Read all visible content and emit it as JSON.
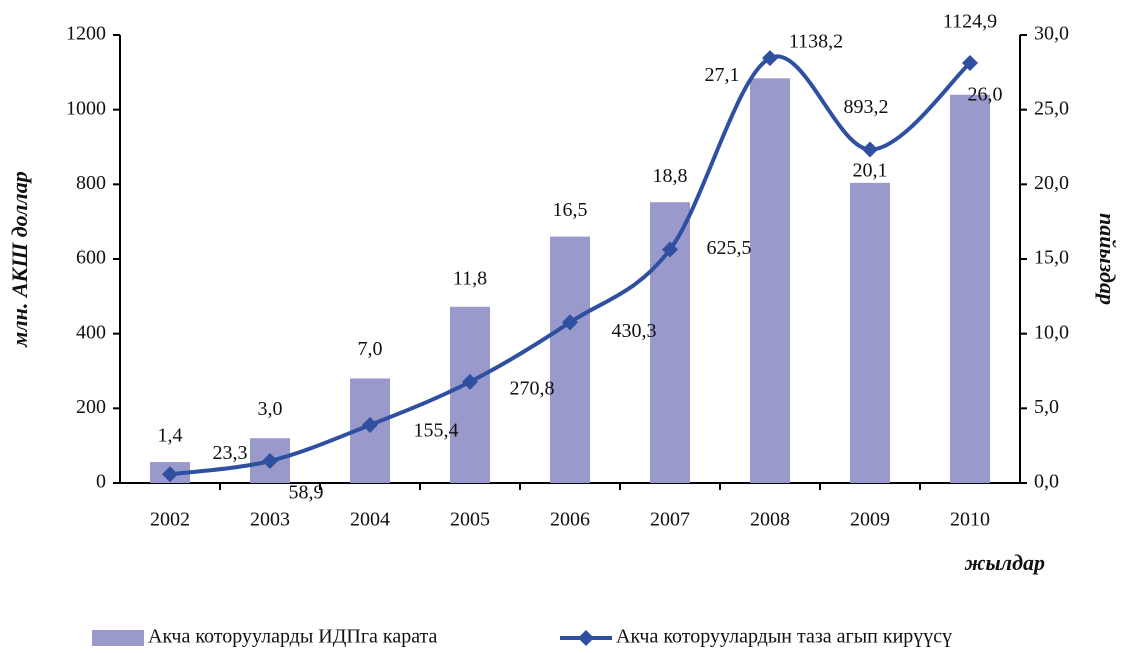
{
  "chart_data": {
    "type": "bar_line",
    "categories": [
      "2002",
      "2003",
      "2004",
      "2005",
      "2006",
      "2007",
      "2008",
      "2009",
      "2010"
    ],
    "series": [
      {
        "name": "Акча которууларды ИДПга карата",
        "type": "bar",
        "axis": "y2",
        "color": "#9999cc",
        "values": [
          1.4,
          3.0,
          7.0,
          11.8,
          16.5,
          18.8,
          27.1,
          20.1,
          26.0
        ],
        "value_labels": [
          "1,4",
          "3,0",
          "7,0",
          "11,8",
          "16,5",
          "18,8",
          "27,1",
          "20,1",
          "26,0"
        ]
      },
      {
        "name": "Акча которуулардын таза агып кирүүсү",
        "type": "line",
        "axis": "y",
        "color": "#2f4fa0",
        "values": [
          23.3,
          58.9,
          155.4,
          270.8,
          430.3,
          625.5,
          1138.2,
          893.2,
          1124.9
        ],
        "value_labels": [
          "23,3",
          "58,9",
          "155,4",
          "270,8",
          "430,3",
          "625,5",
          "1138,2",
          "893,2",
          "1124,9"
        ]
      }
    ],
    "y_label": "млн. АКШ доллар",
    "y2_label": "пайыздар",
    "x_label": "жылдар",
    "ylim": [
      0,
      1200
    ],
    "yticks": [
      0,
      200,
      400,
      600,
      800,
      1000,
      1200
    ],
    "y2lim": [
      0,
      30
    ],
    "y2ticks": [
      {
        "value": 0,
        "label": "0,0"
      },
      {
        "value": 5,
        "label": "5,0"
      },
      {
        "value": 10,
        "label": "10,0"
      },
      {
        "value": 15,
        "label": "15,0"
      },
      {
        "value": 20,
        "label": "20,0"
      },
      {
        "value": 25,
        "label": "25,0"
      },
      {
        "value": 30,
        "label": "30,0"
      }
    ],
    "legend": "bottom"
  }
}
